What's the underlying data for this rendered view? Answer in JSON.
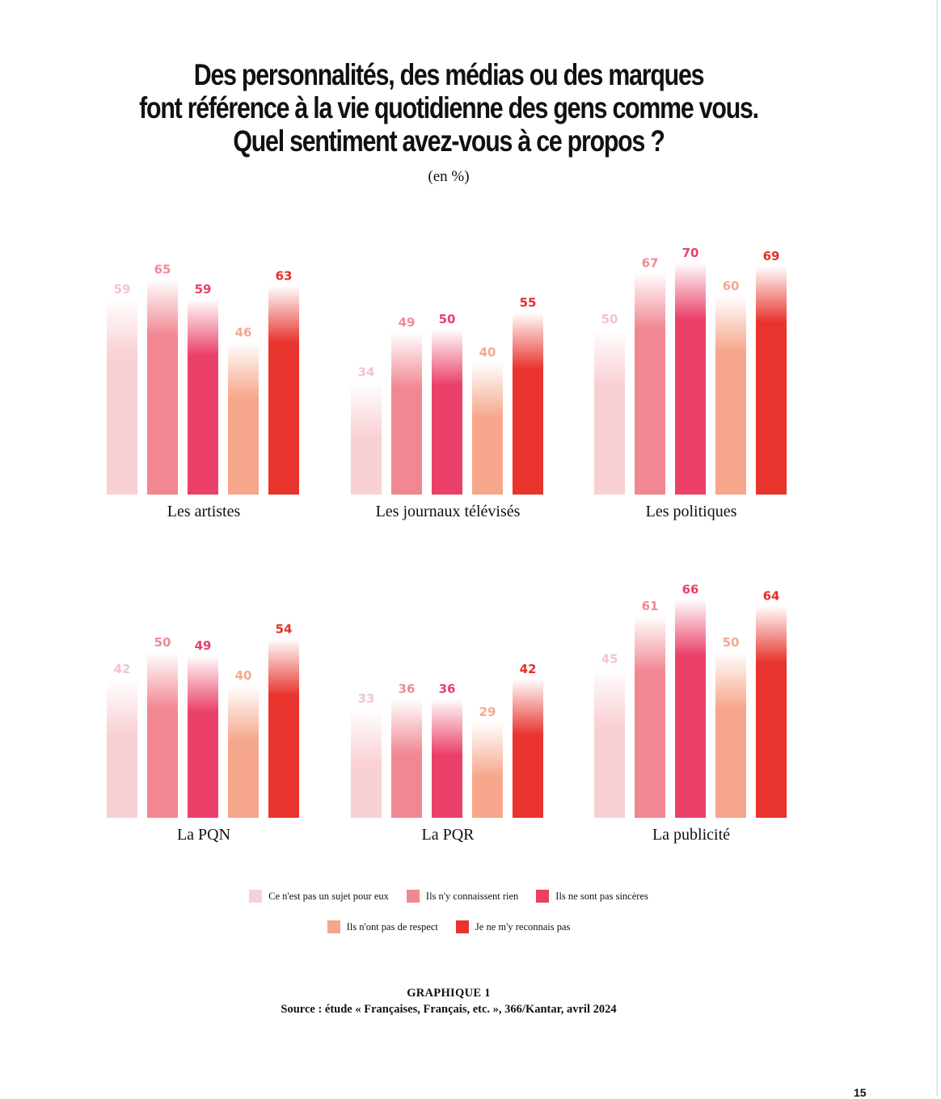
{
  "page": {
    "title_lines": [
      "Des personnalités, des médias ou des marques",
      "font référence à la vie quotidienne des gens comme vous.",
      "Quel sentiment avez-vous à ce propos ?"
    ],
    "subtitle": "(en %)",
    "source_head": "GRAPHIQUE 1",
    "source": "Source : étude « Françaises, Français, etc. », 366/Kantar, avril 2024",
    "page_number": "15"
  },
  "chart_data": {
    "type": "bar",
    "unit": "%",
    "series": [
      {
        "name": "Ce n'est pas un sujet pour eux",
        "color": "#f9d0d4"
      },
      {
        "name": "Ils n'y connaissent rien",
        "color": "#f08791"
      },
      {
        "name": "Ils ne sont pas sincères",
        "color": "#ea4068"
      },
      {
        "name": "Ils n'ont pas de respect",
        "color": "#f6a68a"
      },
      {
        "name": "Je ne m'y reconnais pas",
        "color": "#e8342d"
      }
    ],
    "groups": [
      {
        "label": "Les artistes",
        "values": [
          59,
          65,
          59,
          46,
          63
        ]
      },
      {
        "label": "Les journaux télévisés",
        "values": [
          34,
          49,
          50,
          40,
          55
        ]
      },
      {
        "label": "Les politiques",
        "values": [
          50,
          67,
          70,
          60,
          69
        ]
      },
      {
        "label": "La PQN",
        "values": [
          42,
          50,
          49,
          40,
          54
        ]
      },
      {
        "label": "La PQR",
        "values": [
          33,
          36,
          36,
          29,
          42
        ]
      },
      {
        "label": "La publicité",
        "values": [
          45,
          61,
          66,
          50,
          64
        ]
      }
    ],
    "label_colors": [
      "#f6c3c9",
      "#ef8b96",
      "#e8416a",
      "#f3a98f",
      "#e3302a"
    ],
    "legend": {
      "rows": [
        [
          0,
          1,
          2
        ],
        [
          3,
          4
        ]
      ]
    }
  }
}
